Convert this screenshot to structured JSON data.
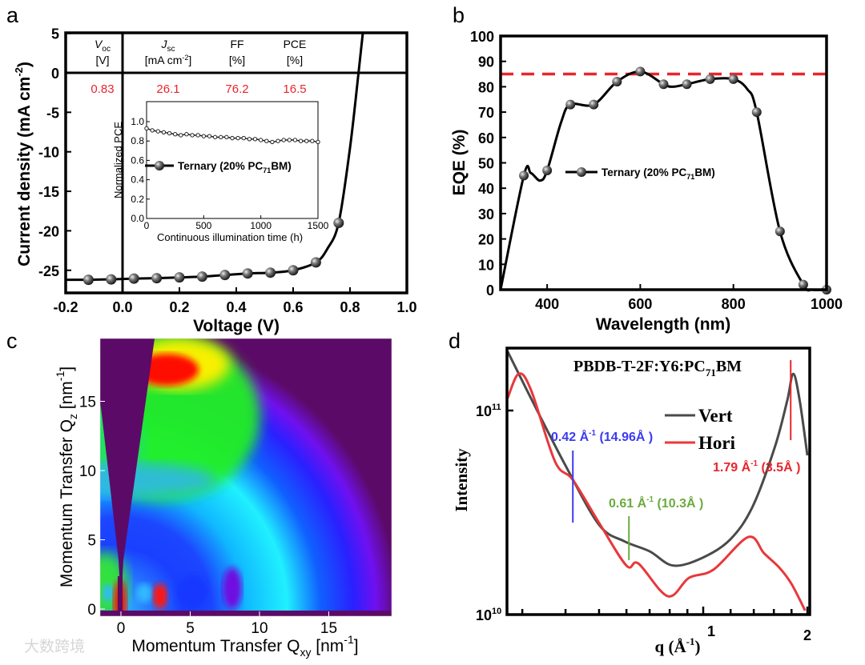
{
  "panel_labels": {
    "a": "a",
    "b": "b",
    "c": "c",
    "d": "d"
  },
  "watermark": "大数跨境",
  "chart_data": [
    {
      "id": "a",
      "type": "line",
      "xlabel": "Voltage (V)",
      "ylabel": {
        "main": "Current density (mA cm",
        "sup": "-2",
        "end": ")"
      },
      "xlim": [
        -0.2,
        1.0
      ],
      "ylim": [
        -28,
        5
      ],
      "xticks": [
        "-0.2",
        "0.0",
        "0.2",
        "0.4",
        "0.6",
        "0.8",
        "1.0"
      ],
      "yticks": [
        "5",
        "0",
        "-5",
        "-10",
        "-15",
        "-20",
        "-25"
      ],
      "series": [
        {
          "name": "Ternary (20% PC71BM)",
          "line_x": [
            -0.2,
            -0.12,
            -0.04,
            0.04,
            0.12,
            0.2,
            0.28,
            0.36,
            0.44,
            0.52,
            0.6,
            0.68,
            0.72,
            0.76,
            0.8,
            0.83,
            0.845
          ],
          "line_y": [
            -26.2,
            -26.2,
            -26.15,
            -26.05,
            -26.0,
            -25.9,
            -25.8,
            -25.6,
            -25.4,
            -25.3,
            -25.0,
            -24.0,
            -22.3,
            -19.0,
            -9.5,
            0,
            5
          ],
          "marker_x": [
            -0.12,
            -0.04,
            0.04,
            0.12,
            0.2,
            0.28,
            0.36,
            0.44,
            0.52,
            0.6,
            0.68,
            0.76
          ],
          "marker_y": [
            -26.2,
            -26.15,
            -26.05,
            -26.0,
            -25.9,
            -25.8,
            -25.6,
            -25.4,
            -25.3,
            -25.0,
            -24.0,
            -19.0
          ]
        }
      ],
      "table": [
        {
          "name": "V",
          "sub": "oc",
          "unit": "[V]",
          "unit_sup": "",
          "unit_end": "",
          "value": "0.83"
        },
        {
          "name": "J",
          "sub": "sc",
          "unit": "[mA cm",
          "unit_sup": "-2",
          "unit_end": "]",
          "value": "26.1"
        },
        {
          "name": "FF",
          "sub": "",
          "unit": "[%]",
          "unit_sup": "",
          "unit_end": "",
          "value": "76.2"
        },
        {
          "name": "PCE",
          "sub": "",
          "unit": "[%]",
          "unit_sup": "",
          "unit_end": "",
          "value": "16.5"
        }
      ],
      "value_color": "#e8262b",
      "inset": {
        "type": "scatter",
        "xlabel": "Continuous illumination time (h)",
        "ylabel": "Normalized PCE",
        "xlim": [
          0,
          1500
        ],
        "ylim": [
          0,
          1.1
        ],
        "xticks": [
          "0",
          "500",
          "1000",
          "1500"
        ],
        "yticks": [
          "0.0",
          "0.2",
          "0.4",
          "0.6",
          "0.8",
          "1.0"
        ],
        "x_step": 50,
        "values": [
          0.93,
          0.91,
          0.9,
          0.89,
          0.88,
          0.87,
          0.86,
          0.87,
          0.86,
          0.86,
          0.85,
          0.85,
          0.84,
          0.84,
          0.84,
          0.83,
          0.83,
          0.83,
          0.82,
          0.82,
          0.81,
          0.8,
          0.79,
          0.8,
          0.81,
          0.81,
          0.81,
          0.8,
          0.8,
          0.8,
          0.79
        ],
        "legend": {
          "main": "Ternary (20% PC",
          "sub": "71",
          "end": "BM)"
        }
      }
    },
    {
      "id": "b",
      "type": "line",
      "xlabel": "Wavelength (nm)",
      "ylabel": "EQE (%)",
      "xlim": [
        300,
        1000
      ],
      "ylim": [
        0,
        100
      ],
      "xticks": [
        "400",
        "600",
        "800",
        "1000"
      ],
      "yticks": [
        "0",
        "10",
        "20",
        "30",
        "40",
        "50",
        "60",
        "70",
        "80",
        "90",
        "100"
      ],
      "series": [
        {
          "name": "Ternary (20% PC71BM)",
          "line_x": [
            300,
            350,
            365,
            385,
            400,
            430,
            450,
            500,
            550,
            600,
            650,
            670,
            700,
            750,
            800,
            830,
            850,
            900,
            950,
            970,
            1000
          ],
          "line_y": [
            0,
            45,
            46,
            43,
            47,
            66,
            73,
            73,
            82,
            86,
            81,
            80,
            81,
            83,
            83,
            79,
            70,
            23,
            2,
            0,
            0
          ],
          "marker_x": [
            350,
            400,
            450,
            500,
            550,
            600,
            650,
            700,
            750,
            800,
            850,
            900,
            950,
            1000
          ],
          "marker_y": [
            45,
            47,
            73,
            73,
            82,
            86,
            81,
            81,
            83,
            83,
            70,
            23,
            2,
            0
          ]
        }
      ],
      "reference_line": 85,
      "reference_color": "#e8262b",
      "legend": {
        "main": "Ternary (20% PC",
        "sub": "71",
        "end": "BM)"
      }
    },
    {
      "id": "c",
      "type": "heatmap",
      "xlabel": {
        "main": "Momentum Transfer Q",
        "sub": "xy",
        "mid": " [nm",
        "sup": "-1",
        "end": "]"
      },
      "ylabel": {
        "main": "Momentum Transfer Q",
        "sub": "z",
        "mid": " [nm",
        "sup": "-1",
        "end": "]"
      },
      "xlim": [
        -1.5,
        19.5
      ],
      "ylim": [
        -0.5,
        19.5
      ],
      "xticks": [
        "0",
        "5",
        "10",
        "15"
      ],
      "yticks": [
        "0",
        "5",
        "10",
        "15"
      ],
      "colormap": "rainbow"
    },
    {
      "id": "d",
      "type": "line",
      "title": {
        "main": "PBDB-T-2F:Y6:PC",
        "sub": "71",
        "end": "BM"
      },
      "xlabel": {
        "main": "q (Å",
        "sup": "-1",
        "end": ")"
      },
      "ylabel": "Intensity",
      "xscale": "log",
      "yscale": "log",
      "xlim": [
        0.27,
        2
      ],
      "ylim": [
        10000000000.0,
        200000000000.0
      ],
      "xticks": [
        "1",
        "2"
      ],
      "yticks": [
        {
          "base": "10",
          "exp": "11"
        },
        {
          "base": "10",
          "exp": "10"
        }
      ],
      "series": [
        {
          "name": "Vert",
          "color": "#4a4a4a",
          "q": [
            0.272,
            0.32,
            0.4,
            0.5,
            0.59,
            0.7,
            0.82,
            1.0,
            1.2,
            1.39,
            1.61,
            1.75,
            1.82,
            1.9,
            2.0
          ],
          "log_I": [
            11.29,
            11.05,
            10.73,
            10.44,
            10.36,
            10.31,
            10.24,
            10.28,
            10.37,
            10.53,
            10.82,
            11.05,
            11.18,
            11.05,
            10.78
          ]
        },
        {
          "name": "Hori",
          "color": "#e8383b",
          "q": [
            0.272,
            0.293,
            0.318,
            0.373,
            0.42,
            0.5,
            0.6,
            0.65,
            0.79,
            0.91,
            1.07,
            1.35,
            1.5,
            1.66,
            1.8,
            1.97
          ],
          "log_I": [
            11.06,
            11.18,
            11.1,
            10.75,
            10.66,
            10.45,
            10.24,
            10.25,
            10.09,
            10.18,
            10.22,
            10.38,
            10.3,
            10.23,
            10.15,
            10.02
          ]
        }
      ],
      "annotations": [
        {
          "q": 0.42,
          "main": "0.42 Å",
          "sup": "-1",
          "end": " (14.96Å )",
          "color": "#3b3bef"
        },
        {
          "q": 0.61,
          "main": "0.61 Å",
          "sup": "-1",
          "end": " (10.3Å )",
          "color": "#6aab3f"
        },
        {
          "q": 1.79,
          "main": "1.79 Å",
          "sup": "-1",
          "end": " (3.5Å )",
          "color": "#e8262b"
        }
      ]
    }
  ]
}
